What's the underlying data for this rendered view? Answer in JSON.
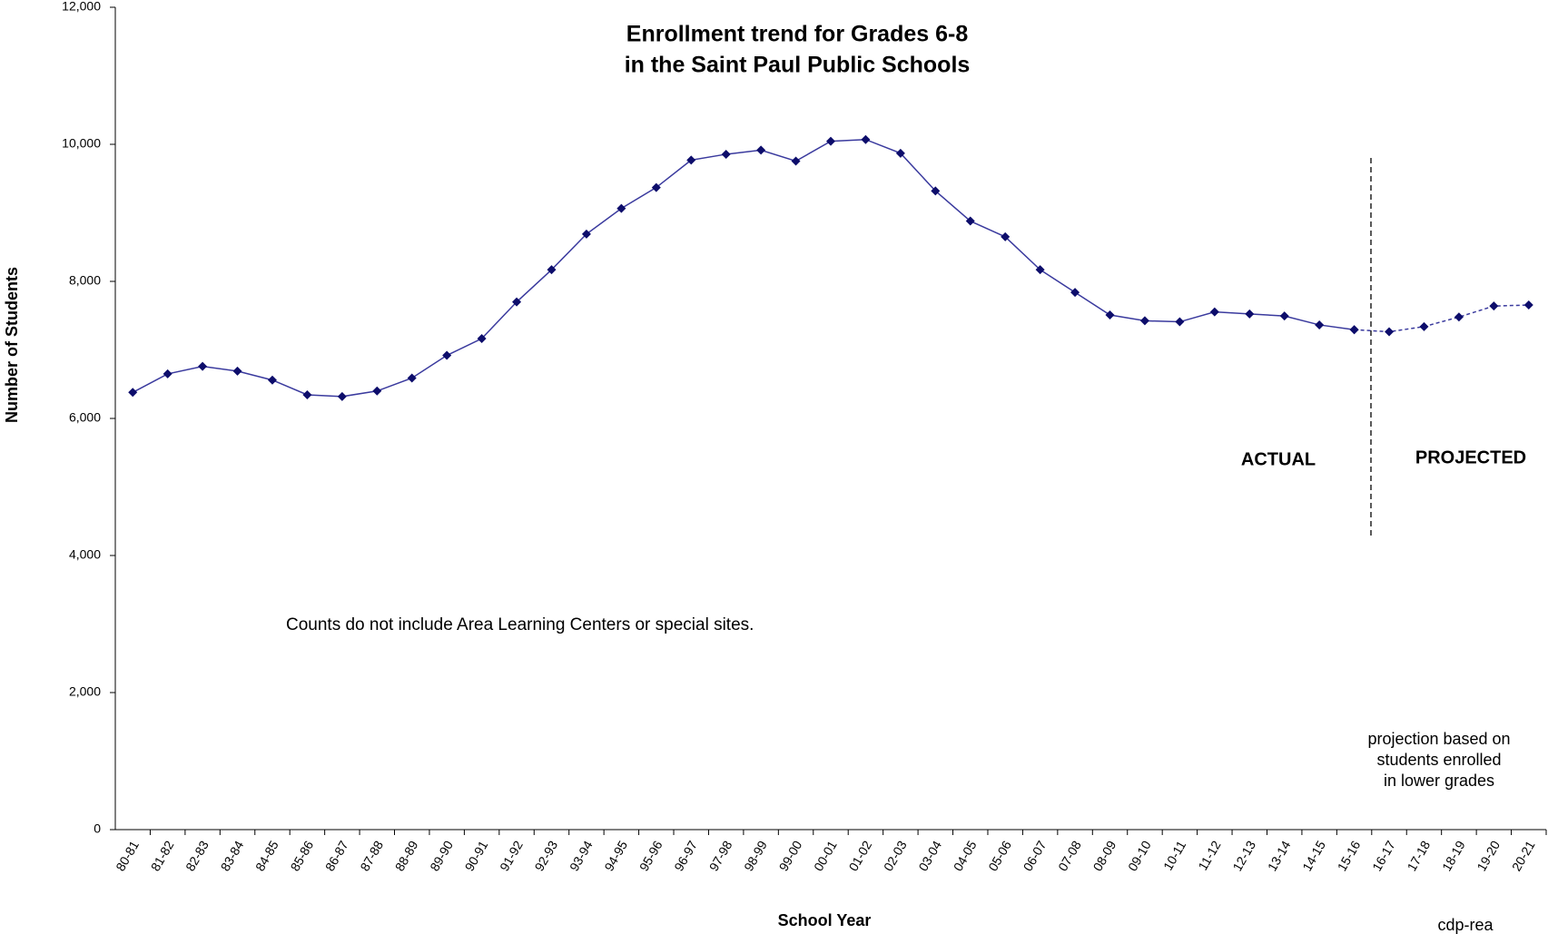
{
  "chart_data": {
    "type": "line",
    "title": [
      "Enrollment trend for Grades 6-8",
      "in the Saint Paul Public Schools"
    ],
    "x_label": "School Year",
    "y_label": "Number of Students",
    "categories": [
      "80-81",
      "81-82",
      "82-83",
      "83-84",
      "84-85",
      "85-86",
      "86-87",
      "87-88",
      "88-89",
      "89-90",
      "90-91",
      "91-92",
      "92-93",
      "93-94",
      "94-95",
      "95-96",
      "96-97",
      "97-98",
      "98-99",
      "99-00",
      "00-01",
      "01-02",
      "02-03",
      "03-04",
      "04-05",
      "05-06",
      "06-07",
      "07-08",
      "08-09",
      "09-10",
      "10-11",
      "11-12",
      "12-13",
      "13-14",
      "14-15",
      "15-16",
      "16-17",
      "17-18",
      "18-19",
      "19-20",
      "20-21"
    ],
    "series": [
      {
        "color": "#3a3a9e",
        "style": "solid",
        "values": [
          6380,
          6650,
          6760,
          6690,
          6560,
          6345,
          6320,
          6400,
          6590,
          6920,
          7165,
          7700,
          8170,
          8690,
          9065,
          9370,
          9770,
          9855,
          9915,
          9755,
          10045,
          10070,
          9870,
          9320,
          8880,
          8650,
          8170,
          7840,
          7510,
          7425,
          7410,
          7555,
          7525,
          7495,
          7365,
          7295,
          null,
          null,
          null,
          null,
          null
        ]
      },
      {
        "color": "#3a3a9e",
        "style": "dashed",
        "values": [
          null,
          null,
          null,
          null,
          null,
          null,
          null,
          null,
          null,
          null,
          null,
          null,
          null,
          null,
          null,
          null,
          null,
          null,
          null,
          null,
          null,
          null,
          null,
          null,
          null,
          null,
          null,
          null,
          null,
          null,
          null,
          null,
          null,
          null,
          null,
          7295,
          7265,
          7340,
          7480,
          7640,
          7655
        ]
      }
    ],
    "marker_color": "#0d0d6b",
    "ylim": [
      0,
      12000
    ],
    "yticks": [
      0,
      {
        "value": 2000,
        "label": "2,000"
      },
      {
        "value": 4000,
        "label": "4,000"
      },
      {
        "value": 6000,
        "label": "6,000"
      },
      {
        "value": 8000,
        "label": "8,000"
      },
      {
        "value": 10000,
        "label": "10,000"
      },
      {
        "value": 12000,
        "label": "12,000"
      }
    ],
    "annotations": {
      "actual": "ACTUAL",
      "projected": "PROJECTED",
      "note": "Counts do not include Area Learning  Centers or special sites.",
      "projection_note": [
        "projection based on",
        "students enrolled",
        "in lower grades"
      ],
      "source": "cdp-rea"
    }
  }
}
